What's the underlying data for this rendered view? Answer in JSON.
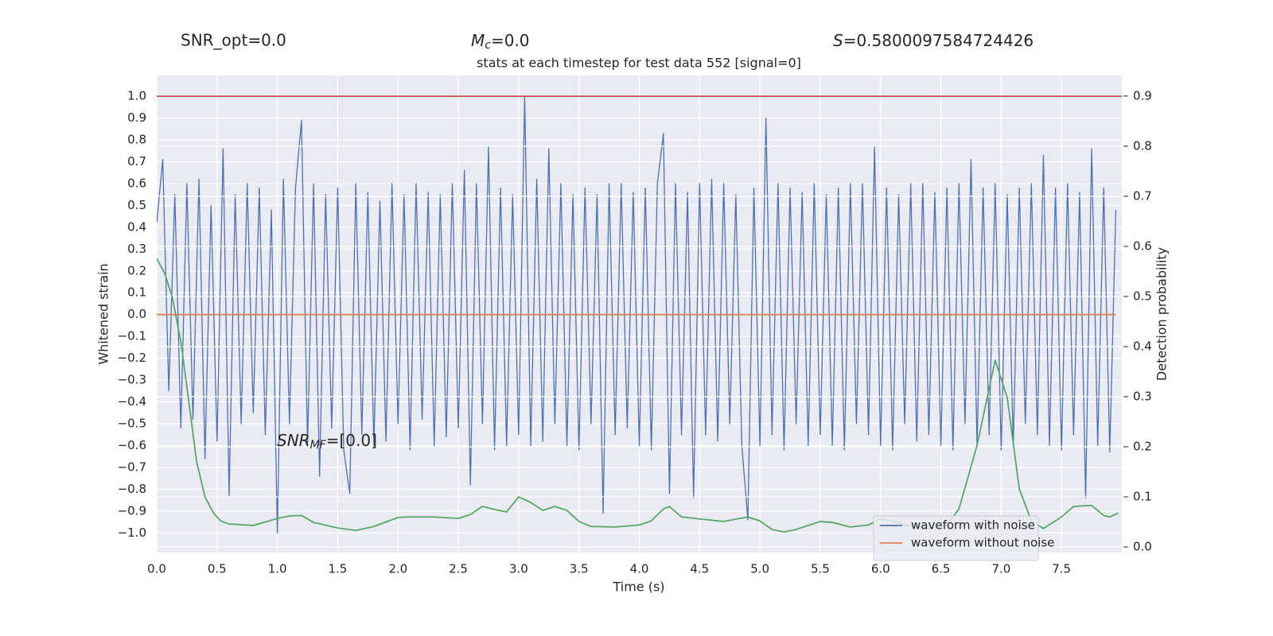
{
  "chart_data": {
    "type": "line",
    "title": "stats at each timestep for test data 552 [signal=0]",
    "header": {
      "snr_opt": "SNR_opt=0.0",
      "mc": {
        "symbol": "M",
        "subscript": "c",
        "rest": "=0.0"
      },
      "s": {
        "symbol": "S",
        "rest": "=0.5800097584724426"
      }
    },
    "annotation": {
      "symbol": "SNR",
      "subscript": "MF",
      "rest": "=[0.0]"
    },
    "xlabel": "Time (s)",
    "ylabel": "Whitened strain",
    "y2label": "Detection probability",
    "xlim": [
      0,
      8
    ],
    "ylim": [
      -1.09,
      1.095
    ],
    "y2lim": [
      -0.011,
      0.941
    ],
    "xticks": [
      {
        "value": 0,
        "label": "0.0"
      },
      0.5,
      {
        "value": 1,
        "label": "1.0"
      },
      1.5,
      {
        "value": 2,
        "label": "2.0"
      },
      2.5,
      {
        "value": 3,
        "label": "3.0"
      },
      3.5,
      {
        "value": 4,
        "label": "4.0"
      },
      4.5,
      {
        "value": 5,
        "label": "5.0"
      },
      5.5,
      {
        "value": 6,
        "label": "6.0"
      },
      6.5,
      {
        "value": 7,
        "label": "7.0"
      },
      7.5
    ],
    "yticks": [
      {
        "value": -1,
        "label": "−1.0"
      },
      {
        "value": -0.9,
        "label": "−0.9"
      },
      {
        "value": -0.8,
        "label": "−0.8"
      },
      {
        "value": -0.7,
        "label": "−0.7"
      },
      {
        "value": -0.6,
        "label": "−0.6"
      },
      {
        "value": -0.5,
        "label": "−0.5"
      },
      {
        "value": -0.4,
        "label": "−0.4"
      },
      {
        "value": -0.3,
        "label": "−0.3"
      },
      {
        "value": -0.2,
        "label": "−0.2"
      },
      {
        "value": -0.1,
        "label": "−0.1"
      },
      {
        "value": 0,
        "label": "0.0"
      },
      0.1,
      0.2,
      0.3,
      0.4,
      0.5,
      0.6,
      0.7,
      0.8,
      0.9,
      {
        "value": 1,
        "label": "1.0"
      }
    ],
    "y2ticks": [
      {
        "value": 0,
        "label": "0.0"
      },
      0.1,
      0.2,
      0.3,
      0.4,
      0.5,
      0.6,
      0.7,
      0.8,
      0.9
    ],
    "grid": true,
    "legend": "lower right",
    "series": [
      {
        "name": "waveform with noise",
        "color": "#4c72b0",
        "x": [
          0,
          0.05,
          0.1,
          0.15,
          0.2,
          0.25,
          0.3,
          0.35,
          0.4,
          0.45,
          0.5,
          0.55,
          0.6,
          0.65,
          0.7,
          0.75,
          0.8,
          0.85,
          0.9,
          0.95,
          1,
          1.05,
          1.1,
          1.15,
          1.2,
          1.25,
          1.3,
          1.35,
          1.4,
          1.45,
          1.5,
          1.55,
          1.6,
          1.65,
          1.7,
          1.75,
          1.8,
          1.85,
          1.9,
          1.95,
          2,
          2.05,
          2.1,
          2.15,
          2.2,
          2.25,
          2.3,
          2.35,
          2.4,
          2.45,
          2.5,
          2.55,
          2.6,
          2.65,
          2.7,
          2.75,
          2.8,
          2.85,
          2.9,
          2.95,
          3,
          3.05,
          3.1,
          3.15,
          3.2,
          3.25,
          3.3,
          3.35,
          3.4,
          3.45,
          3.5,
          3.55,
          3.6,
          3.65,
          3.7,
          3.75,
          3.8,
          3.85,
          3.9,
          3.95,
          4,
          4.05,
          4.1,
          4.15,
          4.2,
          4.25,
          4.3,
          4.35,
          4.4,
          4.45,
          4.5,
          4.55,
          4.6,
          4.65,
          4.7,
          4.75,
          4.8,
          4.85,
          4.9,
          4.95,
          5,
          5.05,
          5.1,
          5.15,
          5.2,
          5.25,
          5.3,
          5.35,
          5.4,
          5.45,
          5.5,
          5.55,
          5.6,
          5.65,
          5.7,
          5.75,
          5.8,
          5.85,
          5.9,
          5.95,
          6,
          6.05,
          6.1,
          6.15,
          6.2,
          6.25,
          6.3,
          6.35,
          6.4,
          6.45,
          6.5,
          6.55,
          6.6,
          6.65,
          6.7,
          6.75,
          6.8,
          6.85,
          6.9,
          6.95,
          7,
          7.05,
          7.1,
          7.15,
          7.2,
          7.25,
          7.3,
          7.35,
          7.4,
          7.45,
          7.5,
          7.55,
          7.6,
          7.65,
          7.7,
          7.75,
          7.8,
          7.85,
          7.9,
          7.95
        ],
        "values": [
          0.42,
          0.71,
          -0.35,
          0.55,
          -0.52,
          0.6,
          -0.48,
          0.62,
          -0.66,
          0.5,
          -0.58,
          0.76,
          -0.83,
          0.55,
          -0.5,
          0.6,
          -0.45,
          0.58,
          -0.55,
          0.48,
          -1.0,
          0.62,
          -0.5,
          0.58,
          0.89,
          -0.6,
          0.6,
          -0.74,
          0.55,
          -0.52,
          0.58,
          -0.62,
          -0.82,
          0.6,
          -0.55,
          0.56,
          -0.6,
          0.52,
          -0.58,
          0.6,
          -0.5,
          0.55,
          -0.62,
          0.6,
          -0.48,
          0.56,
          -0.6,
          0.55,
          -0.56,
          0.6,
          -0.52,
          0.66,
          -0.78,
          0.6,
          -0.5,
          0.77,
          -0.62,
          0.58,
          -0.6,
          0.55,
          -0.55,
          1.0,
          -0.6,
          0.62,
          -0.58,
          0.76,
          -0.5,
          0.6,
          -0.6,
          0.55,
          -0.62,
          0.58,
          -0.5,
          0.55,
          -0.91,
          0.6,
          -0.55,
          0.6,
          -0.52,
          0.56,
          -0.6,
          0.58,
          -0.62,
          0.6,
          0.83,
          -0.82,
          0.6,
          -0.55,
          0.56,
          -0.84,
          0.6,
          -0.55,
          0.62,
          -0.58,
          0.6,
          -0.5,
          0.55,
          -0.6,
          -0.94,
          0.58,
          -0.6,
          0.9,
          -0.55,
          0.6,
          -0.62,
          0.58,
          -0.5,
          0.56,
          -0.6,
          0.6,
          -0.55,
          0.55,
          -0.6,
          0.58,
          -0.62,
          0.6,
          -0.5,
          0.6,
          -0.55,
          0.77,
          -0.6,
          0.58,
          -0.62,
          0.55,
          -0.5,
          0.6,
          -0.58,
          0.6,
          -0.55,
          0.56,
          -0.6,
          0.58,
          -0.62,
          0.6,
          -0.5,
          0.71,
          -0.6,
          0.58,
          -0.55,
          0.6,
          -0.62,
          0.55,
          -0.6,
          0.58,
          -0.5,
          0.6,
          -0.55,
          0.73,
          -0.6,
          0.58,
          -0.62,
          0.6,
          -0.55,
          0.56,
          -0.84,
          0.76,
          -0.6,
          0.58,
          -0.63,
          0.48
        ]
      },
      {
        "name": "waveform without noise",
        "color": "#dd8452",
        "x": [
          0,
          7.95
        ],
        "values": [
          0,
          0
        ]
      },
      {
        "color": "#c44e52",
        "x": [
          0,
          8
        ],
        "values": [
          1,
          1
        ]
      },
      {
        "color": "#55a868",
        "axis": "y2",
        "x": [
          0,
          0.07,
          0.13,
          0.2,
          0.27,
          0.33,
          0.4,
          0.47,
          0.53,
          0.6,
          0.8,
          1.0,
          1.1,
          1.2,
          1.3,
          1.5,
          1.65,
          1.8,
          2.0,
          2.1,
          2.3,
          2.5,
          2.6,
          2.7,
          2.8,
          2.9,
          3.0,
          3.1,
          3.2,
          3.3,
          3.4,
          3.5,
          3.6,
          3.8,
          4.0,
          4.1,
          4.2,
          4.25,
          4.35,
          4.5,
          4.7,
          4.9,
          5.0,
          5.1,
          5.2,
          5.3,
          5.5,
          5.6,
          5.75,
          5.9,
          6.0,
          6.1,
          6.2,
          6.4,
          6.55,
          6.65,
          6.8,
          6.95,
          7.05,
          7.15,
          7.25,
          7.35,
          7.5,
          7.6,
          7.75,
          7.85,
          7.9,
          7.97
        ],
        "values": [
          0.576,
          0.544,
          0.497,
          0.41,
          0.283,
          0.171,
          0.1,
          0.068,
          0.052,
          0.046,
          0.043,
          0.057,
          0.062,
          0.063,
          0.049,
          0.038,
          0.033,
          0.041,
          0.059,
          0.06,
          0.06,
          0.057,
          0.065,
          0.081,
          0.075,
          0.07,
          0.1,
          0.089,
          0.073,
          0.081,
          0.073,
          0.051,
          0.041,
          0.04,
          0.044,
          0.052,
          0.076,
          0.081,
          0.06,
          0.056,
          0.051,
          0.06,
          0.052,
          0.035,
          0.03,
          0.035,
          0.051,
          0.049,
          0.04,
          0.044,
          0.056,
          0.052,
          0.044,
          0.037,
          0.044,
          0.076,
          0.203,
          0.373,
          0.298,
          0.116,
          0.052,
          0.037,
          0.06,
          0.081,
          0.083,
          0.063,
          0.06,
          0.068
        ]
      }
    ]
  }
}
